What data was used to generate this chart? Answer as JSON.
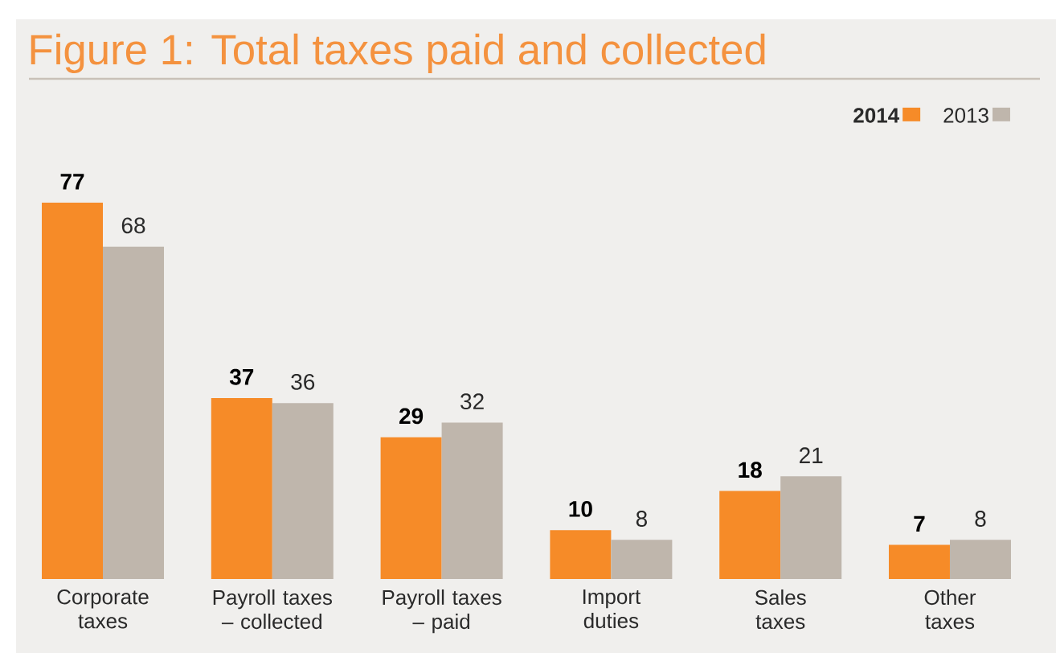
{
  "chart_data": {
    "type": "bar",
    "title": "Figure 1: Total taxes paid and collected",
    "categories": [
      "Corporate\ntaxes",
      "Payroll taxes\n– collected",
      "Payroll taxes\n– paid",
      "Import\nduties",
      "Sales\ntaxes",
      "Other\ntaxes"
    ],
    "series": [
      {
        "name": "2014",
        "color": "#f68b28",
        "values": [
          77,
          37,
          29,
          10,
          18,
          7
        ]
      },
      {
        "name": "2013",
        "color": "#bfb6ac",
        "values": [
          68,
          36,
          32,
          8,
          21,
          8
        ]
      }
    ],
    "data_labels": true,
    "legend": "top right"
  }
}
